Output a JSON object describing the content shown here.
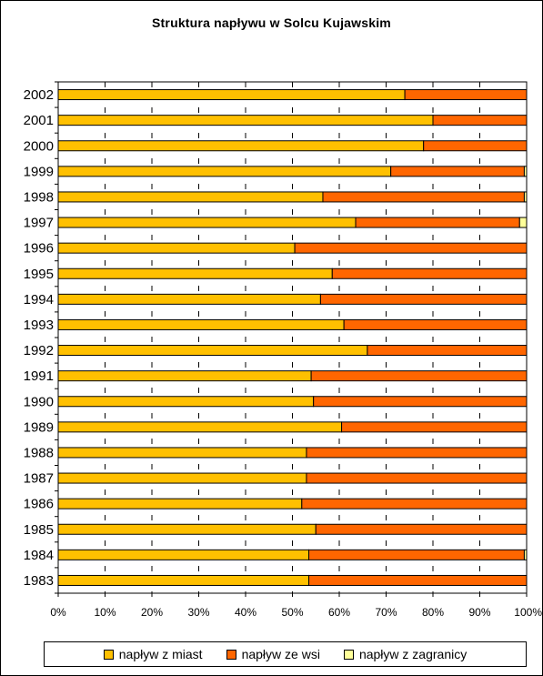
{
  "chart_data": {
    "type": "bar",
    "orientation": "horizontal",
    "stacked": "percent",
    "title": "Struktura napływu w Solcu Kujawskim",
    "categories": [
      "2002",
      "2001",
      "2000",
      "1999",
      "1998",
      "1997",
      "1996",
      "1995",
      "1994",
      "1993",
      "1992",
      "1991",
      "1990",
      "1989",
      "1988",
      "1987",
      "1986",
      "1985",
      "1984",
      "1983"
    ],
    "series": [
      {
        "name": "napływ z miast",
        "color": "#FFC000",
        "values": [
          74,
          80,
          78,
          71,
          56.5,
          63.5,
          50.5,
          58.5,
          56,
          61,
          66,
          54,
          54.5,
          60.5,
          53,
          53,
          52,
          55,
          53.5,
          53.5
        ]
      },
      {
        "name": "napływ ze wsi",
        "color": "#FF6600",
        "values": [
          26,
          20,
          22,
          28.5,
          43,
          35,
          49.5,
          41.5,
          44,
          39,
          34,
          46,
          45.5,
          39.5,
          47,
          47,
          48,
          45,
          46,
          46.5
        ]
      },
      {
        "name": "napływ z zagranicy",
        "color": "#FFFF99",
        "values": [
          0,
          0,
          0,
          0.5,
          0.5,
          1.5,
          0,
          0,
          0,
          0,
          0,
          0,
          0,
          0,
          0,
          0,
          0,
          0,
          0.5,
          0
        ]
      }
    ],
    "x_ticks": [
      "0%",
      "10%",
      "20%",
      "30%",
      "40%",
      "50%",
      "60%",
      "70%",
      "80%",
      "90%",
      "100%"
    ],
    "xlim": [
      0,
      100
    ],
    "grid": "vertical dashed",
    "legend_position": "bottom"
  }
}
